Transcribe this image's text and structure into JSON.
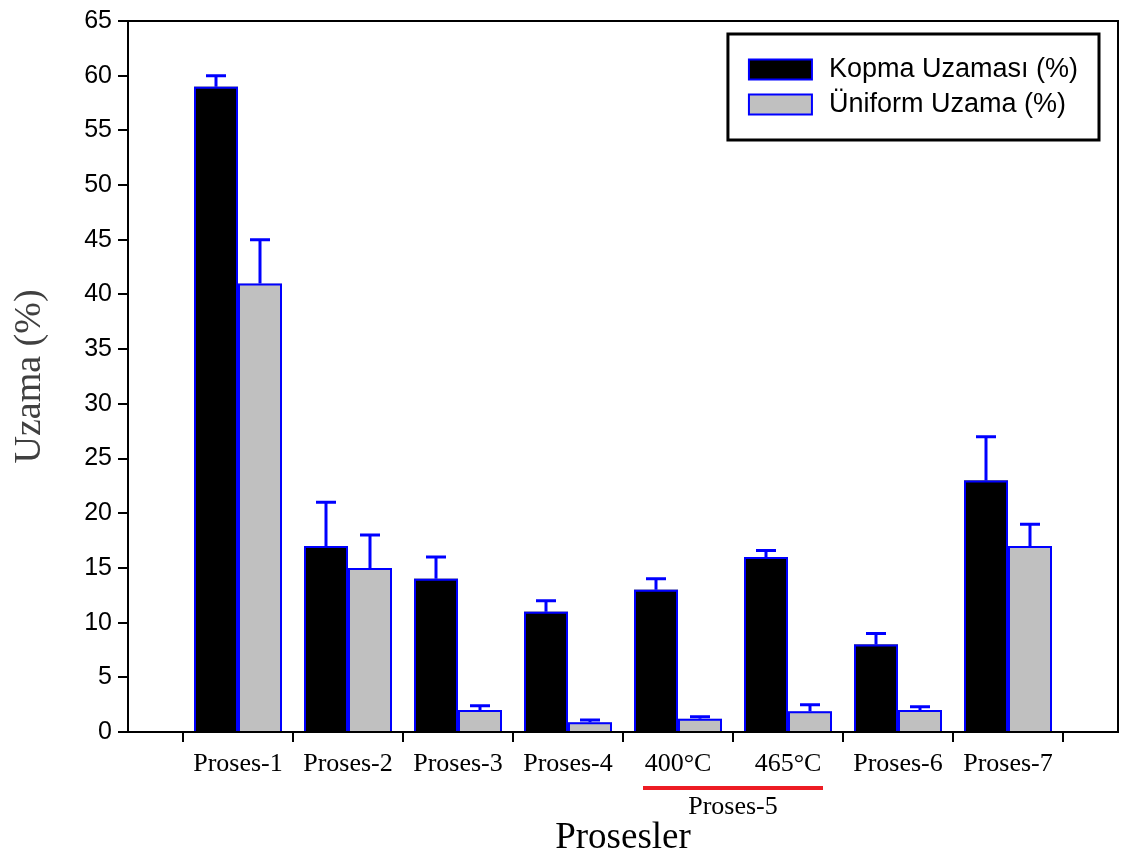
{
  "chart_data": {
    "type": "bar",
    "xlabel": "Prosesler",
    "ylabel": "Uzama (%)",
    "categories": [
      "Proses-1",
      "Proses-2",
      "Proses-3",
      "Proses-4",
      "400°C",
      "465°C",
      "Proses-6",
      "Proses-7"
    ],
    "series": [
      {
        "name": "Kopma Uzaması (%)",
        "color": "#000000",
        "values": [
          59,
          17,
          14,
          11,
          13,
          16,
          8,
          23
        ],
        "errors": [
          [
            59,
            60
          ],
          [
            17,
            21
          ],
          [
            14,
            16
          ],
          [
            11,
            12
          ],
          [
            13,
            14
          ],
          [
            16,
            16.6
          ],
          [
            8,
            9
          ],
          [
            23,
            27
          ]
        ]
      },
      {
        "name": "Üniform Uzama (%)",
        "color": "#c0c0c0",
        "values": [
          41,
          15,
          2,
          0.9,
          1.2,
          1.9,
          2,
          17
        ],
        "errors": [
          [
            41,
            45
          ],
          [
            15,
            18
          ],
          [
            2,
            2.4
          ],
          [
            0.9,
            1.1
          ],
          [
            1.2,
            1.4
          ],
          [
            1.9,
            2.5
          ],
          [
            2,
            2.3
          ],
          [
            17,
            19
          ]
        ]
      }
    ],
    "ylim": [
      0,
      65
    ],
    "yticks": [
      0,
      5,
      10,
      15,
      20,
      25,
      30,
      35,
      40,
      45,
      50,
      55,
      60,
      65
    ],
    "legend": "top right",
    "annotations": [
      "Proses-5"
    ]
  }
}
